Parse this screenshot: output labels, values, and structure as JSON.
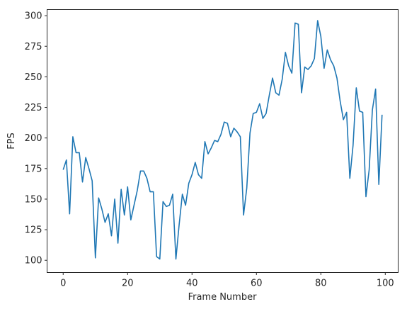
{
  "chart_data": {
    "type": "line",
    "title": "",
    "xlabel": "Frame Number",
    "ylabel": "FPS",
    "xlim": [
      -5,
      104
    ],
    "ylim": [
      90,
      305
    ],
    "xticks": [
      0,
      20,
      40,
      60,
      80,
      100
    ],
    "yticks": [
      100,
      125,
      150,
      175,
      200,
      225,
      250,
      275,
      300
    ],
    "grid": false,
    "legend": "none",
    "line_color": "#1f77b4",
    "x": [
      0,
      1,
      2,
      3,
      4,
      5,
      6,
      7,
      8,
      9,
      10,
      11,
      12,
      13,
      14,
      15,
      16,
      17,
      18,
      19,
      20,
      21,
      22,
      23,
      24,
      25,
      26,
      27,
      28,
      29,
      30,
      31,
      32,
      33,
      34,
      35,
      36,
      37,
      38,
      39,
      40,
      41,
      42,
      43,
      44,
      45,
      46,
      47,
      48,
      49,
      50,
      51,
      52,
      53,
      54,
      55,
      56,
      57,
      58,
      59,
      60,
      61,
      62,
      63,
      64,
      65,
      66,
      67,
      68,
      69,
      70,
      71,
      72,
      73,
      74,
      75,
      76,
      77,
      78,
      79,
      80,
      81,
      82,
      83,
      84,
      85,
      86,
      87,
      88,
      89,
      90,
      91,
      92,
      93,
      94,
      95,
      96,
      97,
      98,
      99
    ],
    "values": [
      174,
      182,
      138,
      201,
      188,
      188,
      164,
      184,
      175,
      165,
      102,
      151,
      142,
      131,
      138,
      120,
      150,
      114,
      158,
      137,
      160,
      133,
      145,
      157,
      173,
      173,
      167,
      156,
      156,
      103,
      101,
      148,
      144,
      145,
      154,
      101,
      129,
      154,
      145,
      163,
      170,
      180,
      170,
      167,
      197,
      187,
      192,
      198,
      197,
      203,
      213,
      212,
      201,
      208,
      205,
      201,
      137,
      159,
      204,
      220,
      221,
      228,
      216,
      220,
      235,
      249,
      237,
      235,
      248,
      270,
      259,
      253,
      294,
      293,
      237,
      258,
      256,
      259,
      265,
      296,
      283,
      257,
      272,
      264,
      259,
      249,
      230,
      215,
      221,
      167,
      194,
      241,
      222,
      221,
      152,
      174,
      223,
      240,
      162,
      219
    ]
  }
}
